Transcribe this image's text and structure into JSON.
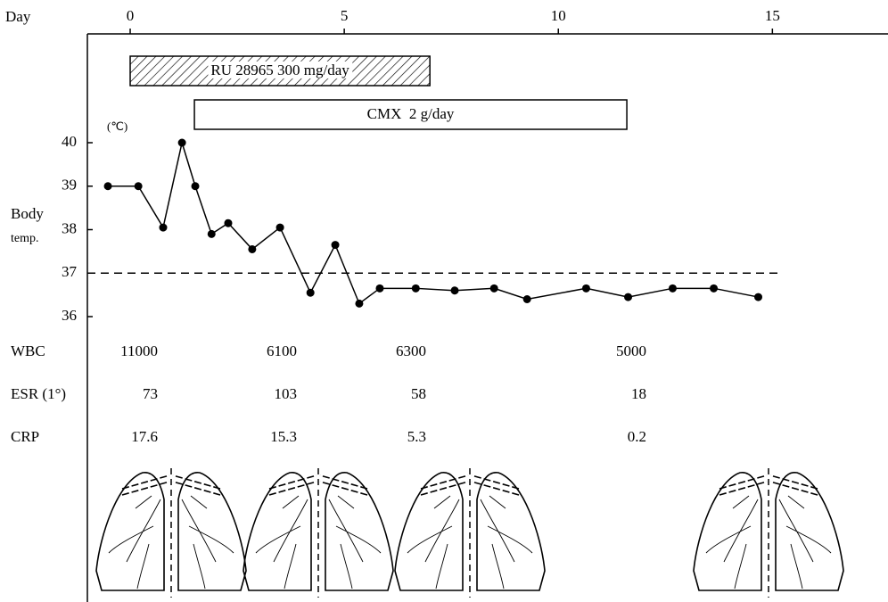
{
  "chart_data": {
    "type": "line",
    "x_label": "Day",
    "y_unit": "(℃)",
    "y_label_lines": [
      "Body",
      "temp."
    ],
    "xlim": [
      -1,
      17.7
    ],
    "xticks": [
      0,
      5,
      10,
      15
    ],
    "ylim": [
      36,
      40
    ],
    "yticks": [
      36,
      37,
      38,
      39,
      40
    ],
    "color": "#000000",
    "x": [
      -0.52,
      0.19,
      0.77,
      1.21,
      1.52,
      1.9,
      2.29,
      2.85,
      3.5,
      4.21,
      4.79,
      5.35,
      5.83,
      6.67,
      7.58,
      8.5,
      9.27,
      10.65,
      11.63,
      12.67,
      13.63,
      14.67
    ],
    "values": [
      39.0,
      39.0,
      38.05,
      40.0,
      39.0,
      37.9,
      38.15,
      37.55,
      38.05,
      36.55,
      37.65,
      36.3,
      36.65,
      36.65,
      36.6,
      36.65,
      36.4,
      36.65,
      36.45,
      36.65,
      36.65,
      36.45
    ],
    "reference_line": 37,
    "treatments": [
      {
        "label": "RU 28965 300 mg/day",
        "start": 0,
        "end": 7,
        "hatched": true
      },
      {
        "label": "CMX  2 g/day",
        "start": 1.5,
        "end": 11.6,
        "hatched": false
      }
    ],
    "labs": [
      {
        "name": "WBC",
        "values": [
          "11000",
          "6100",
          "6300",
          "5000"
        ]
      },
      {
        "name": "ESR (1°)",
        "values": [
          "73",
          "103",
          "58",
          "18"
        ]
      },
      {
        "name": "CRP",
        "values": [
          "17.6",
          "15.3",
          "5.3",
          "0.2"
        ]
      }
    ]
  }
}
